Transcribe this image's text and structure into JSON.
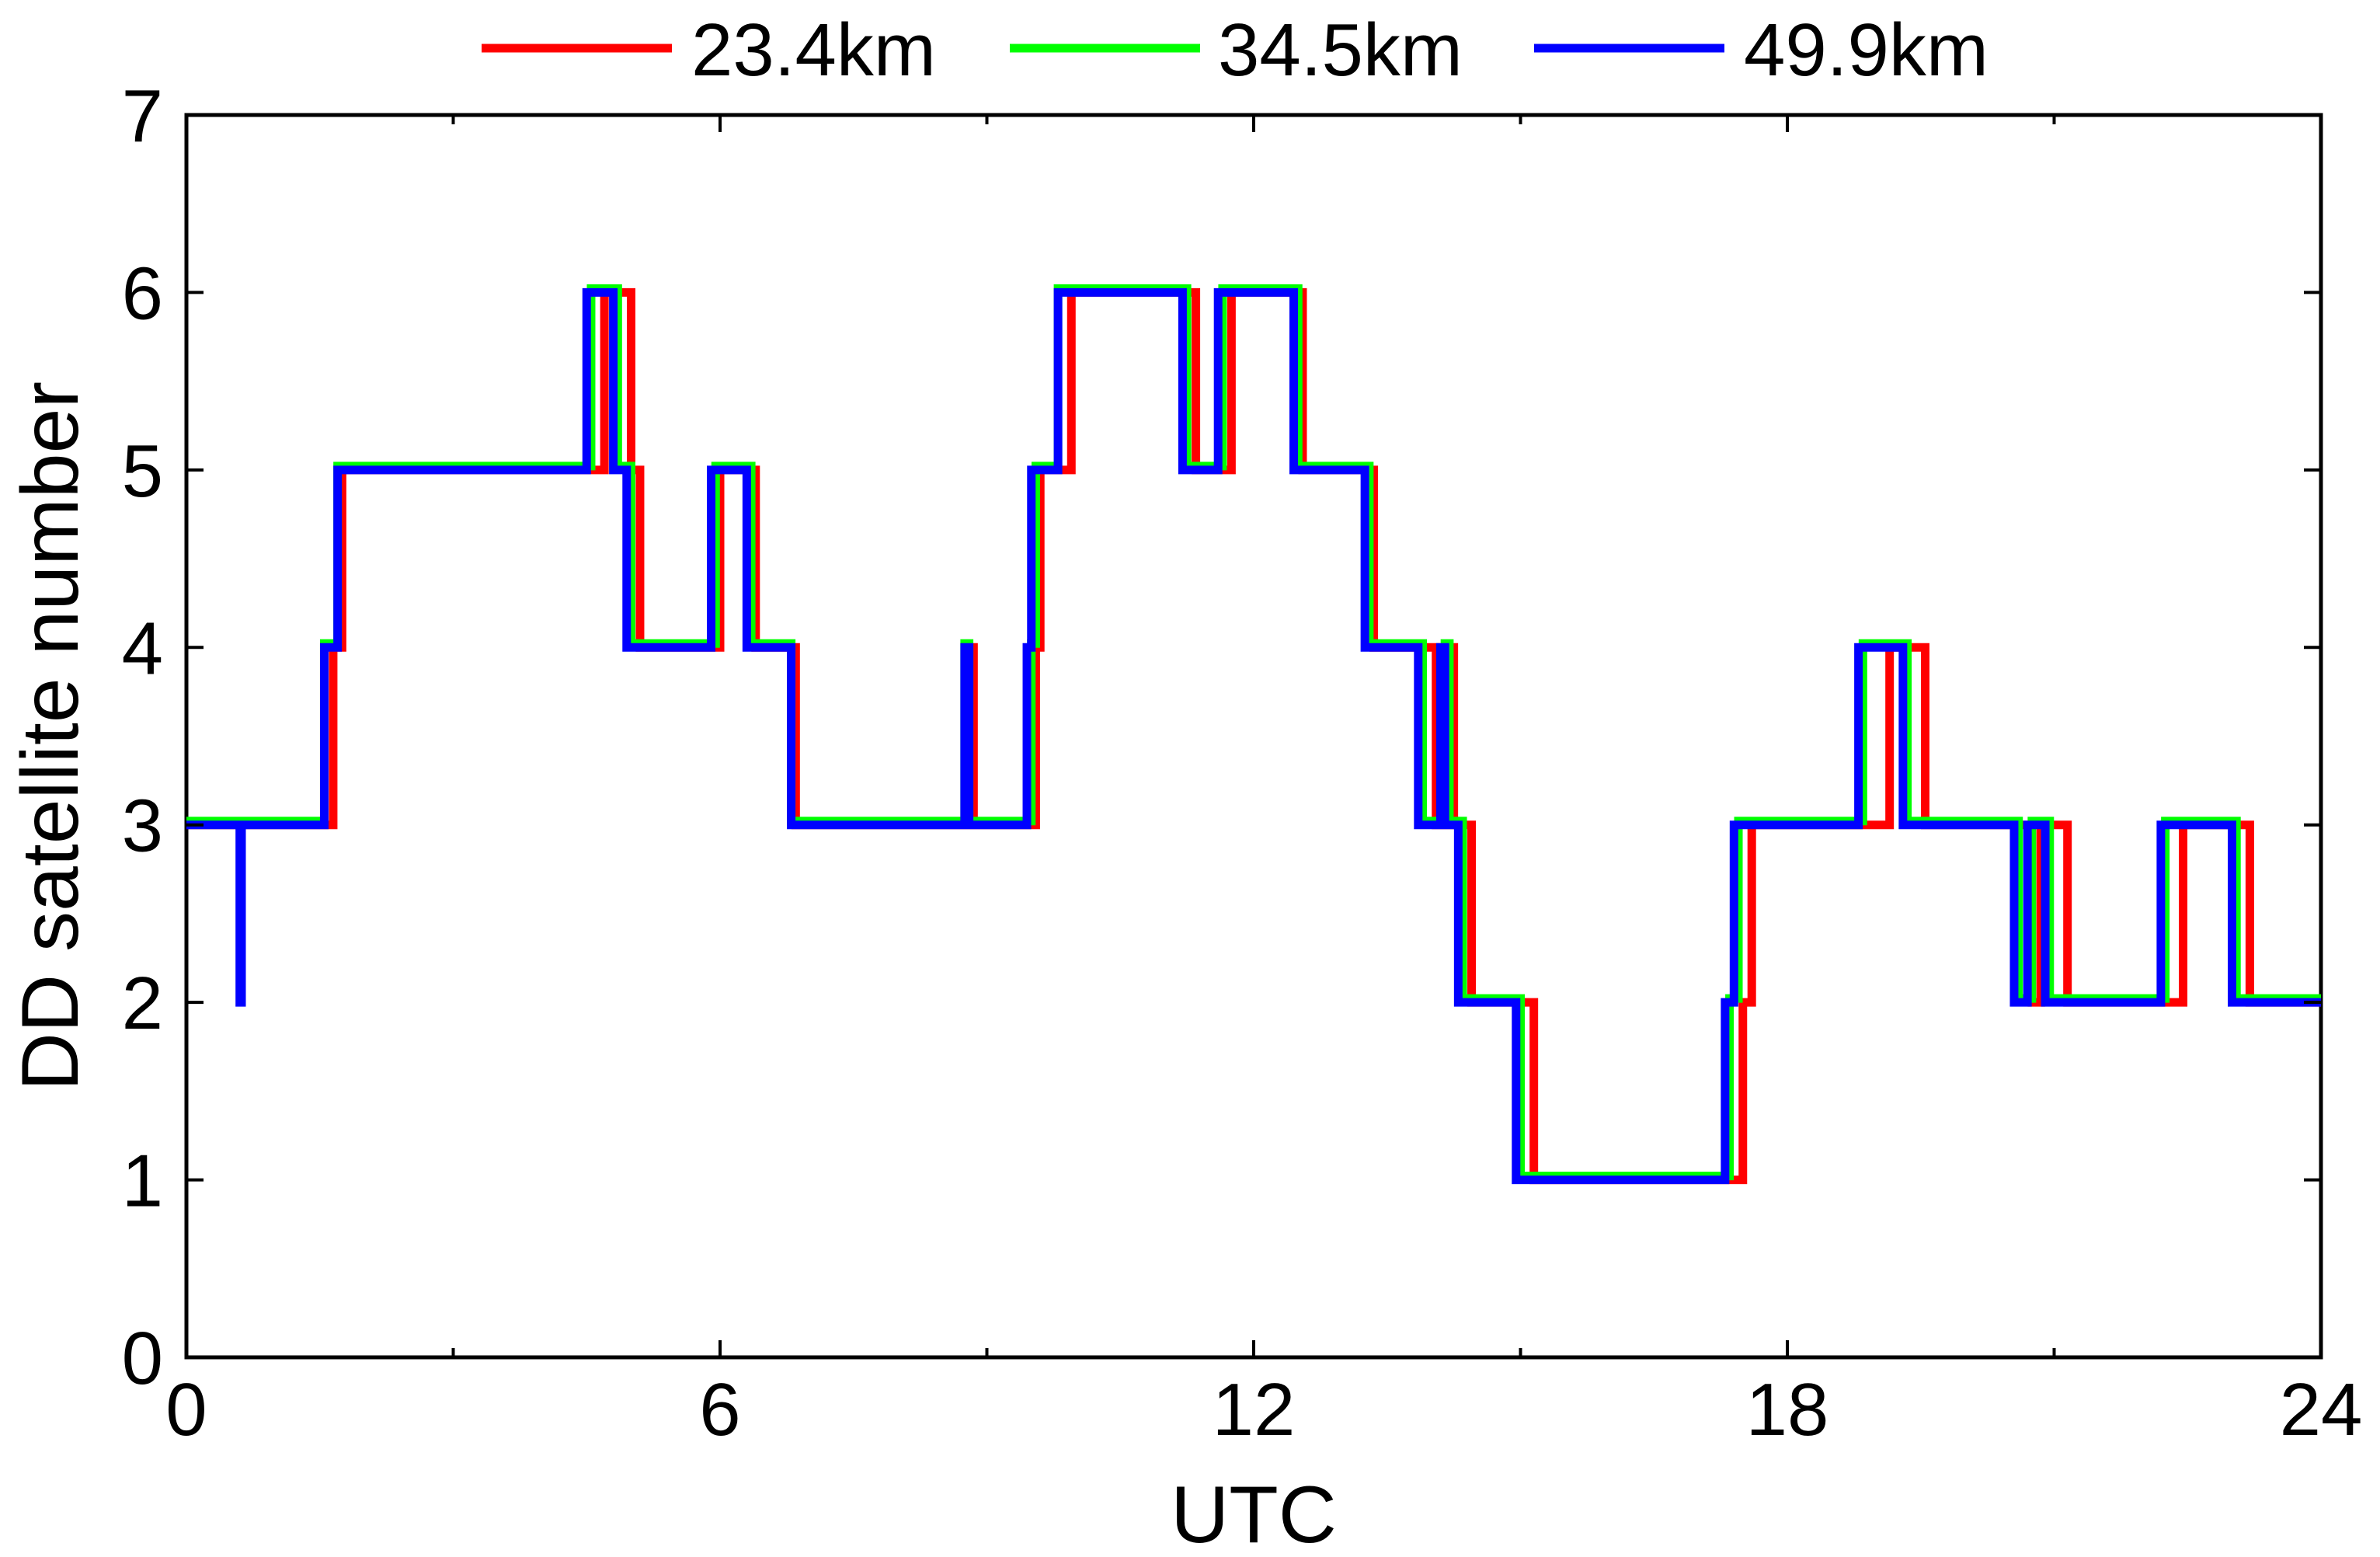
{
  "chart_data": {
    "type": "line",
    "step": true,
    "xlabel": "UTC",
    "ylabel": "DD satellite number",
    "xlim": [
      0,
      24
    ],
    "ylim": [
      0,
      7
    ],
    "x_ticks": [
      0,
      6,
      12,
      18,
      24
    ],
    "y_ticks": [
      0,
      1,
      2,
      3,
      4,
      5,
      6,
      7
    ],
    "x_tick_labels": [
      "0",
      "6",
      "12",
      "18",
      "24"
    ],
    "y_tick_labels": [
      "0",
      "1",
      "2",
      "3",
      "4",
      "5",
      "6",
      "7"
    ],
    "grid": false,
    "legend": {
      "position": "top-center",
      "entries": [
        "23.4km",
        "34.5km",
        "49.9km"
      ]
    },
    "series": [
      {
        "name": "23.4km",
        "color": "#ff0000",
        "steps": [
          [
            0,
            3
          ],
          [
            1.65,
            4
          ],
          [
            1.75,
            5
          ],
          [
            4.7,
            6
          ],
          [
            5.0,
            5
          ],
          [
            5.1,
            4
          ],
          [
            6.0,
            5
          ],
          [
            6.4,
            4
          ],
          [
            6.85,
            3
          ],
          [
            8.8,
            4
          ],
          [
            8.85,
            3
          ],
          [
            9.55,
            4
          ],
          [
            9.6,
            5
          ],
          [
            9.95,
            6
          ],
          [
            11.35,
            5
          ],
          [
            11.75,
            6
          ],
          [
            12.55,
            5
          ],
          [
            13.35,
            4
          ],
          [
            14.05,
            3
          ],
          [
            14.2,
            4
          ],
          [
            14.25,
            3
          ],
          [
            14.45,
            2
          ],
          [
            15.15,
            1
          ],
          [
            17.5,
            2
          ],
          [
            17.6,
            3
          ],
          [
            19.15,
            4
          ],
          [
            19.55,
            3
          ],
          [
            20.75,
            2
          ],
          [
            20.85,
            3
          ],
          [
            21.15,
            2
          ],
          [
            22.45,
            3
          ],
          [
            23.2,
            2
          ],
          [
            23.95,
            2
          ]
        ]
      },
      {
        "name": "34.5km",
        "color": "#00ff00",
        "steps": [
          [
            0,
            3
          ],
          [
            1.55,
            4
          ],
          [
            1.7,
            5
          ],
          [
            4.55,
            6
          ],
          [
            4.85,
            5
          ],
          [
            5.0,
            4
          ],
          [
            5.95,
            5
          ],
          [
            6.35,
            4
          ],
          [
            6.8,
            3
          ],
          [
            8.75,
            4
          ],
          [
            8.8,
            3
          ],
          [
            9.5,
            4
          ],
          [
            9.55,
            5
          ],
          [
            9.8,
            6
          ],
          [
            11.25,
            5
          ],
          [
            11.65,
            6
          ],
          [
            12.5,
            5
          ],
          [
            13.3,
            4
          ],
          [
            13.9,
            3
          ],
          [
            14.15,
            4
          ],
          [
            14.2,
            3
          ],
          [
            14.35,
            2
          ],
          [
            15.0,
            1
          ],
          [
            17.35,
            2
          ],
          [
            17.45,
            3
          ],
          [
            18.85,
            4
          ],
          [
            19.35,
            3
          ],
          [
            20.6,
            2
          ],
          [
            20.75,
            3
          ],
          [
            20.95,
            2
          ],
          [
            22.25,
            3
          ],
          [
            23.05,
            2
          ],
          [
            23.85,
            2
          ]
        ]
      },
      {
        "name": "49.9km",
        "color": "#0000ff",
        "steps": [
          [
            0,
            3
          ],
          [
            0.6,
            2
          ],
          [
            0.62,
            3
          ],
          [
            1.55,
            4
          ],
          [
            1.7,
            5
          ],
          [
            4.5,
            6
          ],
          [
            4.8,
            5
          ],
          [
            4.95,
            4
          ],
          [
            5.9,
            5
          ],
          [
            6.3,
            4
          ],
          [
            6.8,
            3
          ],
          [
            8.75,
            4
          ],
          [
            8.8,
            3
          ],
          [
            9.45,
            4
          ],
          [
            9.5,
            5
          ],
          [
            9.8,
            6
          ],
          [
            11.2,
            5
          ],
          [
            11.6,
            6
          ],
          [
            12.45,
            5
          ],
          [
            13.25,
            4
          ],
          [
            13.85,
            3
          ],
          [
            14.1,
            4
          ],
          [
            14.15,
            3
          ],
          [
            14.3,
            2
          ],
          [
            14.95,
            1
          ],
          [
            17.3,
            2
          ],
          [
            17.4,
            3
          ],
          [
            18.8,
            4
          ],
          [
            19.3,
            3
          ],
          [
            20.55,
            2
          ],
          [
            20.7,
            3
          ],
          [
            20.9,
            2
          ],
          [
            22.2,
            3
          ],
          [
            23.0,
            2
          ],
          [
            23.8,
            2
          ]
        ]
      }
    ]
  }
}
